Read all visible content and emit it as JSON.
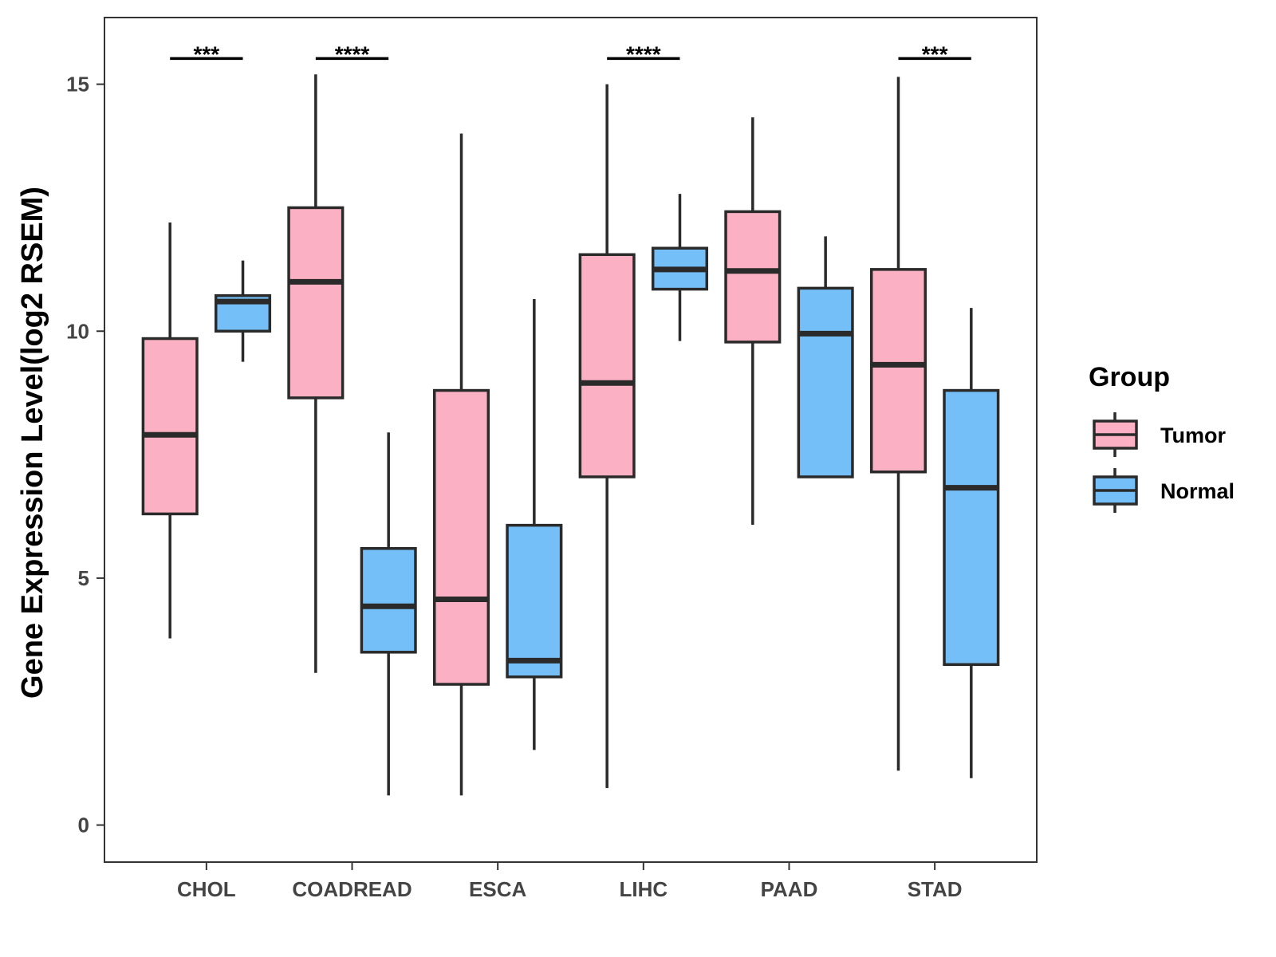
{
  "chart_data": {
    "type": "boxplot",
    "ylabel": "Gene Expression Level(log2 RSEM)",
    "xlabel": "",
    "ylim": [
      -0.75,
      16.35
    ],
    "yticks": [
      0,
      5,
      10,
      15
    ],
    "categories": [
      "CHOL",
      "COADREAD",
      "ESCA",
      "LIHC",
      "PAAD",
      "STAD"
    ],
    "legend": {
      "title": "Group",
      "position": "right",
      "entries": [
        {
          "name": "Tumor",
          "color": "#FBB1C3"
        },
        {
          "name": "Normal",
          "color": "#74BFF7"
        }
      ]
    },
    "series": [
      {
        "name": "Tumor",
        "color": "#FBB1C3",
        "boxes": [
          {
            "category": "CHOL",
            "min": 3.78,
            "q1": 6.3,
            "median": 7.9,
            "q3": 9.85,
            "max": 12.2
          },
          {
            "category": "COADREAD",
            "min": 3.08,
            "q1": 8.65,
            "median": 11.0,
            "q3": 12.5,
            "max": 15.2
          },
          {
            "category": "ESCA",
            "min": 0.6,
            "q1": 2.85,
            "median": 4.57,
            "q3": 8.8,
            "max": 14.0
          },
          {
            "category": "LIHC",
            "min": 0.75,
            "q1": 7.05,
            "median": 8.95,
            "q3": 11.55,
            "max": 15.0
          },
          {
            "category": "PAAD",
            "min": 6.08,
            "q1": 9.78,
            "median": 11.22,
            "q3": 12.42,
            "max": 14.33
          },
          {
            "category": "STAD",
            "min": 1.1,
            "q1": 7.15,
            "median": 9.32,
            "q3": 11.25,
            "max": 15.15
          }
        ]
      },
      {
        "name": "Normal",
        "color": "#74BFF7",
        "boxes": [
          {
            "category": "CHOL",
            "min": 9.38,
            "q1": 10.0,
            "median": 10.6,
            "q3": 10.72,
            "max": 11.43
          },
          {
            "category": "COADREAD",
            "min": 0.6,
            "q1": 3.5,
            "median": 4.43,
            "q3": 5.6,
            "max": 7.95
          },
          {
            "category": "ESCA",
            "min": 1.52,
            "q1": 3.0,
            "median": 3.33,
            "q3": 6.07,
            "max": 10.65
          },
          {
            "category": "LIHC",
            "min": 9.8,
            "q1": 10.85,
            "median": 11.25,
            "q3": 11.68,
            "max": 12.78
          },
          {
            "category": "PAAD",
            "min": 7.05,
            "q1": 7.05,
            "median": 9.95,
            "q3": 10.87,
            "max": 11.92
          },
          {
            "category": "STAD",
            "min": 0.95,
            "q1": 3.25,
            "median": 6.83,
            "q3": 8.8,
            "max": 10.47
          }
        ]
      }
    ],
    "annotations": [
      {
        "category": "CHOL",
        "label": "***",
        "y": 15.52
      },
      {
        "category": "COADREAD",
        "label": "****",
        "y": 15.52
      },
      {
        "category": "LIHC",
        "label": "****",
        "y": 15.52
      },
      {
        "category": "STAD",
        "label": "***",
        "y": 15.52
      }
    ]
  }
}
